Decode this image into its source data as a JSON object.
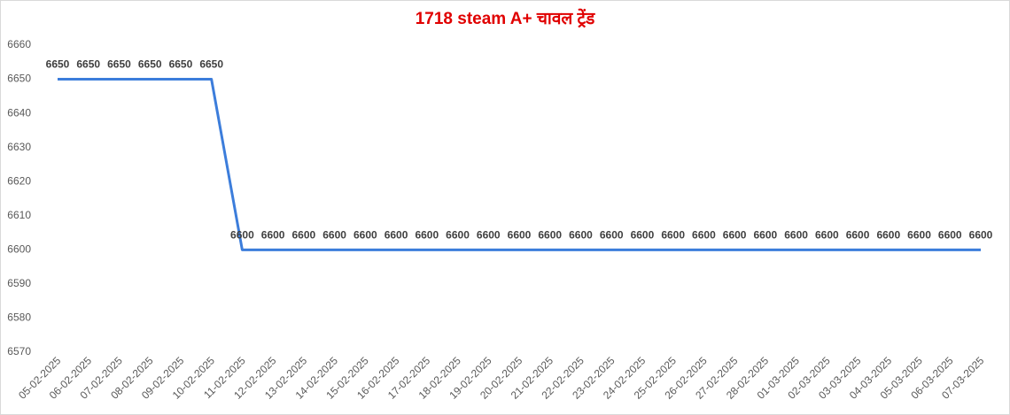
{
  "chart_data": {
    "type": "line",
    "title": "1718 steam A+ चावल ट्रेंड",
    "categories": [
      "05-02-2025",
      "06-02-2025",
      "07-02-2025",
      "08-02-2025",
      "09-02-2025",
      "10-02-2025",
      "11-02-2025",
      "12-02-2025",
      "13-02-2025",
      "14-02-2025",
      "15-02-2025",
      "16-02-2025",
      "17-02-2025",
      "18-02-2025",
      "19-02-2025",
      "20-02-2025",
      "21-02-2025",
      "22-02-2025",
      "23-02-2025",
      "24-02-2025",
      "25-02-2025",
      "26-02-2025",
      "27-02-2025",
      "28-02-2025",
      "01-03-2025",
      "02-03-2025",
      "03-03-2025",
      "04-03-2025",
      "05-03-2025",
      "06-03-2025",
      "07-03-2025"
    ],
    "values": [
      6650,
      6650,
      6650,
      6650,
      6650,
      6650,
      6600,
      6600,
      6600,
      6600,
      6600,
      6600,
      6600,
      6600,
      6600,
      6600,
      6600,
      6600,
      6600,
      6600,
      6600,
      6600,
      6600,
      6600,
      6600,
      6600,
      6600,
      6600,
      6600,
      6600,
      6600
    ],
    "color": "#3c7ddb",
    "ylim": [
      6570,
      6660
    ],
    "yticks": [
      6570,
      6580,
      6590,
      6600,
      6610,
      6620,
      6630,
      6640,
      6650,
      6660
    ],
    "grid": false
  }
}
